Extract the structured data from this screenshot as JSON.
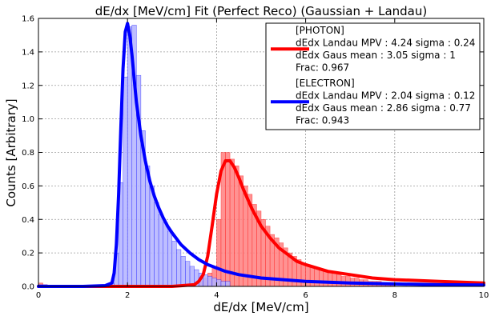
{
  "chart_data": {
    "type": "bar",
    "title": "dE/dx [MeV/cm] Fit (Perfect Reco) (Gaussian + Landau)",
    "xlabel": "dE/dx [MeV/cm]",
    "ylabel": "Counts [Arbitrary]",
    "xlim": [
      0,
      10
    ],
    "ylim": [
      0,
      1.6
    ],
    "xticks": [
      0,
      2,
      4,
      6,
      8,
      10
    ],
    "yticks": [
      0.0,
      0.2,
      0.4,
      0.6,
      0.8,
      1.0,
      1.2,
      1.4,
      1.6
    ],
    "grid": true,
    "legend_position": "top-right",
    "bin_width": 0.1,
    "histograms": [
      {
        "label": "PHOTON",
        "color": "#ff0000",
        "fill_color": "#ff7f7f",
        "x": [
          0.0,
          0.1,
          3.6,
          3.7,
          3.8,
          3.9,
          4.0,
          4.1,
          4.2,
          4.3,
          4.4,
          4.5,
          4.6,
          4.7,
          4.8,
          4.9,
          5.0,
          5.1,
          5.2,
          5.3,
          5.4,
          5.5,
          5.6,
          5.7,
          5.8,
          5.9,
          6.0,
          6.1,
          6.2,
          6.3,
          6.4,
          6.5,
          6.6,
          6.7,
          6.8,
          6.9,
          7.0,
          7.1,
          7.2,
          7.3,
          7.4,
          7.5,
          7.6,
          7.7,
          7.8,
          7.9
        ],
        "values": [
          0.02,
          0.01,
          0.03,
          0.05,
          0.08,
          0.12,
          0.4,
          0.8,
          0.8,
          0.76,
          0.72,
          0.66,
          0.6,
          0.55,
          0.49,
          0.45,
          0.4,
          0.36,
          0.31,
          0.29,
          0.26,
          0.23,
          0.2,
          0.18,
          0.16,
          0.14,
          0.13,
          0.12,
          0.11,
          0.1,
          0.09,
          0.08,
          0.08,
          0.07,
          0.06,
          0.06,
          0.05,
          0.05,
          0.04,
          0.04,
          0.03,
          0.03,
          0.03,
          0.02,
          0.02,
          0.02
        ]
      },
      {
        "label": "ELECTRON",
        "color": "#0000ff",
        "fill_color": "#b3b3ff",
        "x": [
          0.0,
          0.1,
          1.6,
          1.7,
          1.8,
          1.9,
          2.0,
          2.1,
          2.2,
          2.3,
          2.4,
          2.5,
          2.6,
          2.7,
          2.8,
          2.9,
          3.0,
          3.1,
          3.2,
          3.3,
          3.4,
          3.5,
          3.6,
          3.7,
          3.8,
          3.9,
          4.0,
          4.1,
          4.2
        ],
        "values": [
          0.01,
          0.01,
          0.02,
          0.2,
          0.62,
          1.25,
          1.55,
          1.56,
          1.26,
          0.93,
          0.72,
          0.6,
          0.5,
          0.43,
          0.38,
          0.33,
          0.27,
          0.22,
          0.18,
          0.15,
          0.12,
          0.1,
          0.08,
          0.07,
          0.06,
          0.05,
          0.04,
          0.03,
          0.03
        ]
      }
    ],
    "fits": [
      {
        "name": "PHOTON",
        "color": "#ff0000",
        "landau_mpv": 4.24,
        "landau_sigma": 0.24,
        "gaus_mean": 3.05,
        "gaus_sigma": 1,
        "frac": 0.967,
        "peak": 0.75,
        "x": [
          0,
          1,
          2,
          3,
          3.5,
          3.6,
          3.7,
          3.8,
          3.9,
          4.0,
          4.1,
          4.2,
          4.3,
          4.4,
          4.5,
          4.6,
          4.8,
          5.0,
          5.2,
          5.4,
          5.6,
          5.8,
          6.0,
          6.5,
          7.0,
          7.5,
          8.0,
          9.0,
          10.0
        ],
        "y": [
          0.0,
          0.0,
          0.0,
          0.0,
          0.01,
          0.03,
          0.07,
          0.18,
          0.36,
          0.55,
          0.69,
          0.75,
          0.75,
          0.71,
          0.65,
          0.58,
          0.46,
          0.36,
          0.29,
          0.23,
          0.19,
          0.15,
          0.13,
          0.09,
          0.07,
          0.05,
          0.04,
          0.03,
          0.02
        ]
      },
      {
        "name": "ELECTRON",
        "color": "#0000ff",
        "landau_mpv": 2.04,
        "landau_sigma": 0.12,
        "gaus_mean": 2.86,
        "gaus_sigma": 0.77,
        "frac": 0.943,
        "peak": 1.57,
        "x": [
          0,
          1,
          1.5,
          1.65,
          1.7,
          1.75,
          1.8,
          1.85,
          1.9,
          1.95,
          2.0,
          2.05,
          2.1,
          2.15,
          2.2,
          2.3,
          2.4,
          2.5,
          2.6,
          2.7,
          2.8,
          2.9,
          3.0,
          3.2,
          3.4,
          3.6,
          3.8,
          4.0,
          4.2,
          4.5,
          5.0,
          5.5,
          6.0,
          7.0,
          8.0,
          9.0,
          10.0
        ],
        "y": [
          0.0,
          0.0,
          0.005,
          0.02,
          0.08,
          0.25,
          0.55,
          0.95,
          1.3,
          1.52,
          1.57,
          1.5,
          1.38,
          1.24,
          1.1,
          0.9,
          0.75,
          0.63,
          0.54,
          0.47,
          0.41,
          0.36,
          0.32,
          0.25,
          0.2,
          0.16,
          0.13,
          0.11,
          0.09,
          0.07,
          0.05,
          0.04,
          0.03,
          0.02,
          0.015,
          0.01,
          0.008
        ]
      }
    ],
    "legend": [
      {
        "name": "PHOTON",
        "color": "#ff0000",
        "lines": [
          "[PHOTON]",
          "dEdx Landau MPV : 4.24 sigma : 0.24",
          "dEdx Gaus mean : 3.05 sigma : 1",
          "Frac: 0.967"
        ]
      },
      {
        "name": "ELECTRON",
        "color": "#0000ff",
        "lines": [
          "[ELECTRON]",
          "dEdx Landau MPV : 2.04 sigma : 0.12",
          "dEdx Gaus mean : 2.86 sigma : 0.77",
          "Frac: 0.943"
        ]
      }
    ]
  }
}
